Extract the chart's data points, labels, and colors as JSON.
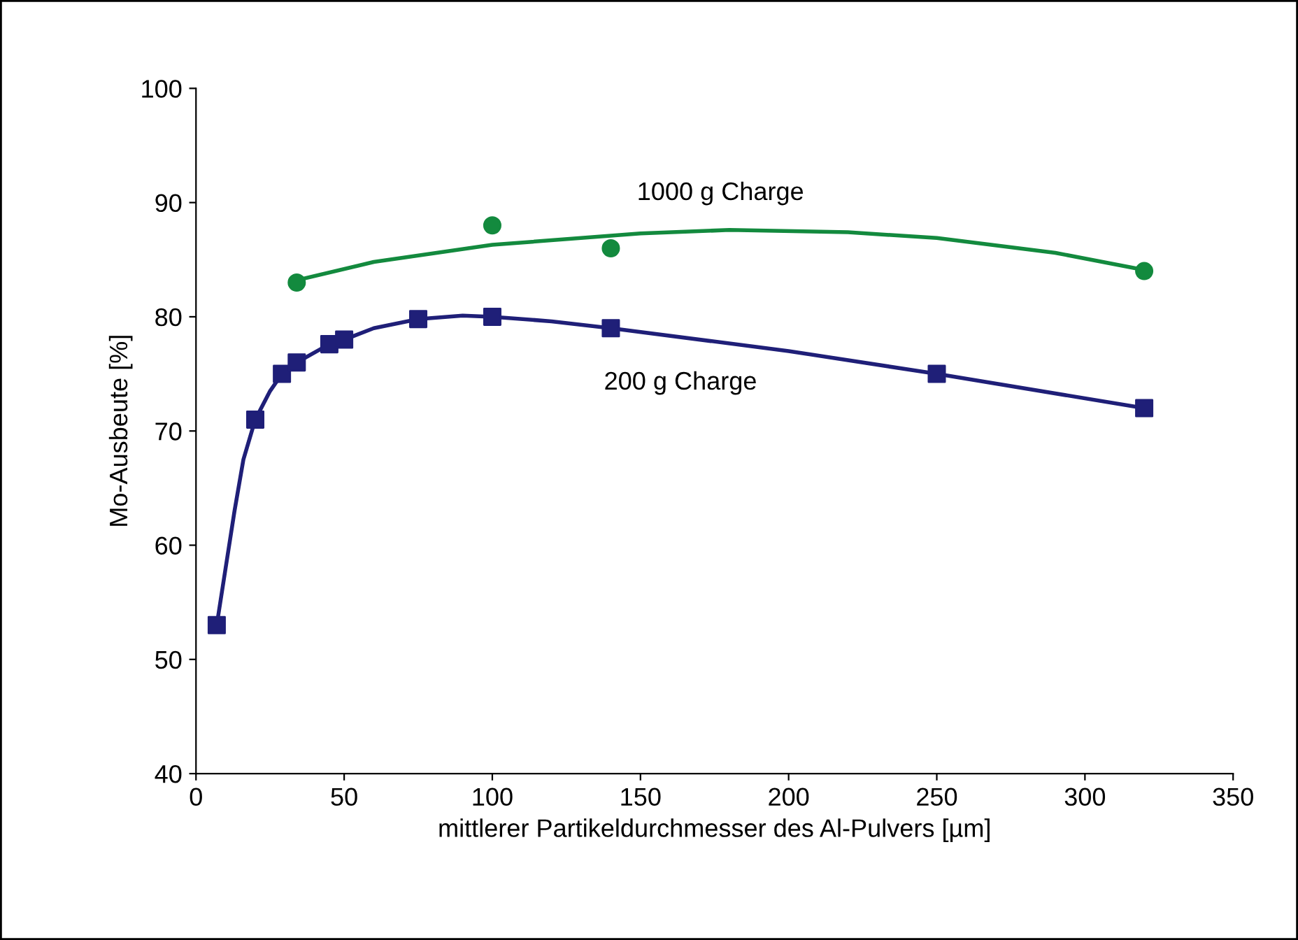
{
  "chart_data": {
    "type": "scatter",
    "xlabel": "mittlerer Partikeldurchmesser des Al-Pulvers [µm]",
    "ylabel": "Mo-Ausbeute [%]",
    "xlim": [
      0,
      350
    ],
    "xticks": [
      0,
      50,
      100,
      150,
      200,
      250,
      300,
      350
    ],
    "ylim": [
      40,
      100
    ],
    "yticks": [
      40,
      50,
      60,
      70,
      80,
      90,
      100
    ],
    "grid": false,
    "legend": false,
    "series": [
      {
        "name": "1000 g Charge",
        "marker": "circle",
        "color": "#138a3e",
        "x": [
          34,
          100,
          140,
          320
        ],
        "values": [
          83,
          88,
          86,
          84
        ]
      },
      {
        "type": "line",
        "marker": "none",
        "color": "#138a3e",
        "x": [
          34,
          60,
          100,
          150,
          180,
          220,
          250,
          290,
          320
        ],
        "values": [
          83.2,
          84.8,
          86.3,
          87.3,
          87.6,
          87.4,
          86.9,
          85.6,
          84.1
        ]
      },
      {
        "name": "200 g Charge",
        "marker": "square",
        "color": "#1f1f78",
        "x": [
          7,
          20,
          29,
          34,
          45,
          50,
          75,
          100,
          140,
          250,
          320
        ],
        "values": [
          53,
          71,
          75,
          76,
          77.6,
          78,
          79.8,
          80,
          79,
          75,
          72
        ]
      },
      {
        "type": "line",
        "marker": "none",
        "color": "#1f1f78",
        "x": [
          7,
          10,
          13,
          16,
          20,
          25,
          29,
          34,
          45,
          50,
          60,
          75,
          90,
          100,
          120,
          140,
          200,
          250,
          320
        ],
        "values": [
          53,
          58,
          63,
          67.5,
          71,
          73.5,
          75,
          76,
          77.6,
          78,
          79,
          79.8,
          80.1,
          80,
          79.6,
          79,
          77,
          75,
          72
        ]
      }
    ]
  }
}
